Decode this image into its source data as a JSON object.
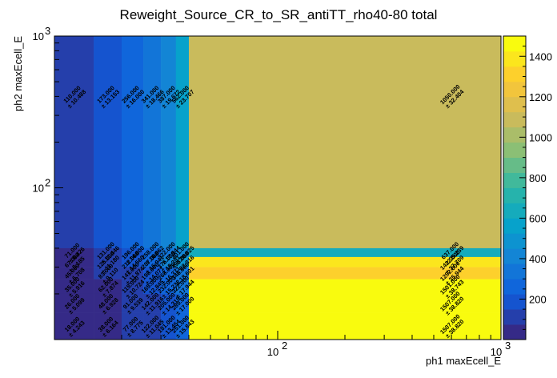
{
  "chart_data": {
    "type": "heatmap",
    "title": "Reweight_Source_CR_to_SR_antiTT_rho40-80 total",
    "xlabel": "ph1 maxEcell_E",
    "ylabel": "ph2 maxEcell_E",
    "x_scale": "log",
    "y_scale": "log",
    "xlim": [
      10,
      1000
    ],
    "ylim": [
      10,
      1000
    ],
    "x_edges": [
      10,
      15,
      20,
      25,
      30,
      35,
      40,
      1000
    ],
    "y_edges": [
      10,
      15,
      20,
      25,
      30,
      35,
      40,
      1000
    ],
    "x_ticks": [
      {
        "value": 100,
        "label": "10",
        "exp": "2"
      },
      {
        "value": 1000,
        "label": "10",
        "exp": "3"
      }
    ],
    "y_ticks": [
      {
        "value": 100,
        "label": "10",
        "exp": "2"
      },
      {
        "value": 1000,
        "label": "10",
        "exp": "3"
      }
    ],
    "z_range": [
      0,
      1500
    ],
    "z_ticks": [
      "200",
      "400",
      "600",
      "800",
      "1000",
      "1200",
      "1400"
    ],
    "palette": [
      "#352a87",
      "#0f5cdd",
      "#1481d6",
      "#06a4ca",
      "#2eb7a4",
      "#87bf77",
      "#d1bb59",
      "#fec832",
      "#f9fb0e"
    ],
    "cells": [
      {
        "xi": 0,
        "yi": 6,
        "value": "110.000",
        "error": "± 10.488"
      },
      {
        "xi": 1,
        "yi": 6,
        "value": "173.000",
        "error": "± 13.153"
      },
      {
        "xi": 2,
        "yi": 6,
        "value": "256.000",
        "error": "± 16.000"
      },
      {
        "xi": 3,
        "yi": 6,
        "value": "341.000",
        "error": "± 18.466"
      },
      {
        "xi": 4,
        "yi": 6,
        "value": "387.000",
        "error": "± 19.672"
      },
      {
        "xi": 5,
        "yi": 6,
        "value": "562.000",
        "error": "± 23.707"
      },
      {
        "xi": 6,
        "yi": 6,
        "value": "1050.000",
        "error": "± 32.404"
      },
      {
        "xi": 0,
        "yi": 5,
        "value": "71.000",
        "error": "± 8.426"
      },
      {
        "xi": 1,
        "yi": 5,
        "value": "131.000",
        "error": "± 11.446"
      },
      {
        "xi": 2,
        "yi": 5,
        "value": "196.000",
        "error": "± 14.000"
      },
      {
        "xi": 3,
        "yi": 5,
        "value": "258.000",
        "error": "± 16.062"
      },
      {
        "xi": 4,
        "yi": 5,
        "value": "322.000",
        "error": "± 17.944"
      },
      {
        "xi": 5,
        "yi": 5,
        "value": "401.000",
        "error": "± 20.025"
      },
      {
        "xi": 6,
        "yi": 5,
        "value": "637.000",
        "error": "± 25.239"
      },
      {
        "xi": 0,
        "yi": 4,
        "value": "67.000",
        "error": "± 8.185"
      },
      {
        "xi": 1,
        "yi": 4,
        "value": "125.000",
        "error": "± 11.180"
      },
      {
        "xi": 2,
        "yi": 4,
        "value": "212.000",
        "error": "± 14.560"
      },
      {
        "xi": 3,
        "yi": 4,
        "value": "287.000",
        "error": "± 16.941"
      },
      {
        "xi": 4,
        "yi": 4,
        "value": "376.000",
        "error": "± 19.391"
      },
      {
        "xi": 5,
        "yi": 4,
        "value": "498.000",
        "error": "± 22.316"
      },
      {
        "xi": 6,
        "yi": 4,
        "value": "1422.000",
        "error": "± 37.709"
      },
      {
        "xi": 0,
        "yi": 3,
        "value": "45.000",
        "error": "± 6.708"
      },
      {
        "xi": 1,
        "yi": 3,
        "value": "83.000",
        "error": "± 9.110"
      },
      {
        "xi": 2,
        "yi": 3,
        "value": "141.000",
        "error": "± 11.874"
      },
      {
        "xi": 3,
        "yi": 3,
        "value": "198.000",
        "error": "± 14.071"
      },
      {
        "xi": 4,
        "yi": 3,
        "value": "268.000",
        "error": "± 16.371"
      },
      {
        "xi": 5,
        "yi": 3,
        "value": "346.000",
        "error": "± 18.601"
      },
      {
        "xi": 6,
        "yi": 3,
        "value": "1292.000",
        "error": "± 35.944"
      },
      {
        "xi": 0,
        "yi": 2,
        "value": "35.000",
        "error": "± 5.916"
      },
      {
        "xi": 1,
        "yi": 2,
        "value": "62.000",
        "error": "± 7.874"
      },
      {
        "xi": 2,
        "yi": 2,
        "value": "115.000",
        "error": "± 10.724"
      },
      {
        "xi": 3,
        "yi": 2,
        "value": "165.000",
        "error": "± 12.845"
      },
      {
        "xi": 4,
        "yi": 2,
        "value": "232.000",
        "error": "± 15.232"
      },
      {
        "xi": 5,
        "yi": 2,
        "value": "322.000",
        "error": "± 17.944"
      },
      {
        "xi": 6,
        "yi": 2,
        "value": "1501.000",
        "error": "± 38.743"
      },
      {
        "xi": 0,
        "yi": 1,
        "value": "26.000",
        "error": "± 5.099"
      },
      {
        "xi": 1,
        "yi": 1,
        "value": "48.000",
        "error": "± 6.928"
      },
      {
        "xi": 2,
        "yi": 1,
        "value": "91.000",
        "error": "± 9.539"
      },
      {
        "xi": 3,
        "yi": 1,
        "value": "142.000",
        "error": "± 11.916"
      },
      {
        "xi": 4,
        "yi": 1,
        "value": "205.000",
        "error": "± 14.318"
      },
      {
        "xi": 5,
        "yi": 1,
        "value": "289.000",
        "error": "± 17.000"
      },
      {
        "xi": 6,
        "yi": 1,
        "value": "1507.000",
        "error": "± 38.820"
      },
      {
        "xi": 0,
        "yi": 0,
        "value": "18.000",
        "error": "± 4.243"
      },
      {
        "xi": 1,
        "yi": 0,
        "value": "38.000",
        "error": "± 6.164"
      },
      {
        "xi": 2,
        "yi": 0,
        "value": "77.000",
        "error": "± 8.775"
      },
      {
        "xi": 3,
        "yi": 0,
        "value": "122.000",
        "error": "± 11.045"
      },
      {
        "xi": 4,
        "yi": 0,
        "value": "181.000",
        "error": "± 13.454"
      },
      {
        "xi": 5,
        "yi": 0,
        "value": "251.000",
        "error": "± 15.843"
      },
      {
        "xi": 6,
        "yi": 0,
        "value": "1507.000",
        "error": "± 38.820"
      }
    ]
  }
}
